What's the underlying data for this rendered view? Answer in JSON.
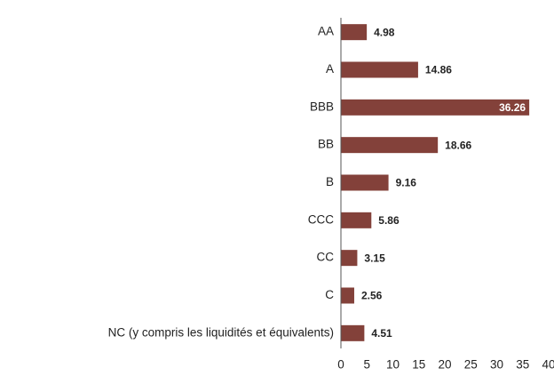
{
  "chart_data": {
    "type": "bar",
    "orientation": "horizontal",
    "categories": [
      "AA",
      "A",
      "BBB",
      "BB",
      "B",
      "CCC",
      "CC",
      "C",
      "NC (y compris les liquidités et équivalents)"
    ],
    "values": [
      4.98,
      14.86,
      36.26,
      18.66,
      9.16,
      5.86,
      3.15,
      2.56,
      4.51
    ],
    "color": "#83413a",
    "xlim": [
      0,
      40
    ],
    "xticks": [
      0,
      5,
      10,
      15,
      20,
      25,
      30,
      35,
      40
    ],
    "grid": false
  }
}
